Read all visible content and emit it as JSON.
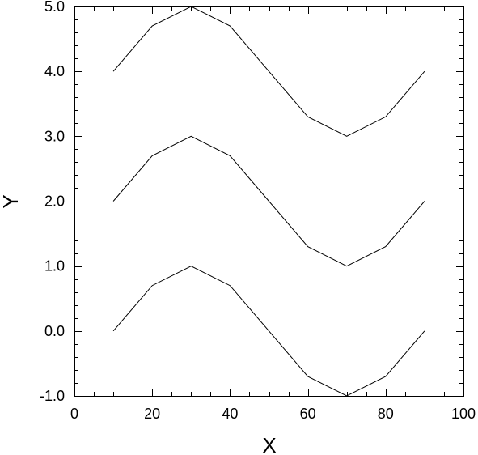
{
  "chart_data": {
    "type": "line",
    "title": "",
    "xlabel": "X",
    "ylabel": "Y",
    "xlim": [
      0,
      100
    ],
    "ylim": [
      -1.0,
      5.0
    ],
    "xticks": [
      0,
      20,
      40,
      60,
      80,
      100
    ],
    "xtick_labels": [
      "0",
      "20",
      "40",
      "60",
      "80",
      "100"
    ],
    "yticks": [
      -1.0,
      0.0,
      1.0,
      2.0,
      3.0,
      4.0,
      5.0
    ],
    "ytick_labels": [
      "-1.0",
      "0.0",
      "1.0",
      "2.0",
      "3.0",
      "4.0",
      "5.0"
    ],
    "x_minor_step": 5,
    "y_minor_step": 0.2,
    "grid": false,
    "legend": "none",
    "line_color": "#000000",
    "x": [
      10,
      20,
      30,
      40,
      50,
      60,
      70,
      80,
      90
    ],
    "series": [
      {
        "values": [
          4.0,
          4.7,
          5.0,
          4.7,
          4.0,
          3.3,
          3.0,
          3.3,
          4.0
        ]
      },
      {
        "values": [
          2.0,
          2.7,
          3.0,
          2.7,
          2.0,
          1.3,
          1.0,
          1.3,
          2.0
        ]
      },
      {
        "values": [
          0.0,
          0.7,
          1.0,
          0.7,
          0.0,
          -0.7,
          -1.0,
          -0.7,
          0.0
        ]
      }
    ]
  }
}
